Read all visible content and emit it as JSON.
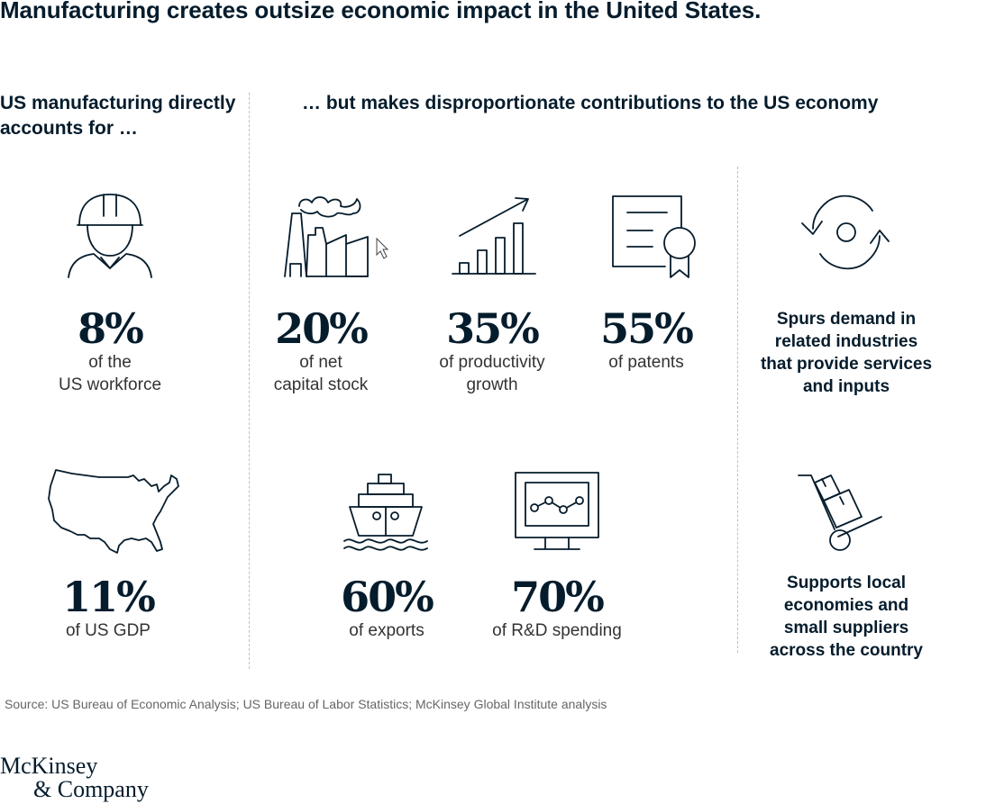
{
  "title": "Manufacturing creates outsize economic impact in the United States.",
  "left_heading": "US manufacturing directly accounts for …",
  "right_heading": "… but makes disproportionate contributions to the US economy",
  "direct": [
    {
      "icon": "worker-hardhat-icon",
      "value": "8%",
      "label_line1": "of the",
      "label_line2": "US workforce"
    },
    {
      "icon": "us-map-icon",
      "value": "11%",
      "label_line1": "of US GDP",
      "label_line2": ""
    }
  ],
  "contributions": [
    {
      "icon": "factory-icon",
      "value": "20%",
      "label_line1": "of net",
      "label_line2": "capital stock"
    },
    {
      "icon": "growth-chart-icon",
      "value": "35%",
      "label_line1": "of productivity",
      "label_line2": "growth"
    },
    {
      "icon": "certificate-icon",
      "value": "55%",
      "label_line1": "of patents",
      "label_line2": ""
    },
    {
      "icon": "cargo-ship-icon",
      "value": "60%",
      "label_line1": "of exports",
      "label_line2": ""
    },
    {
      "icon": "monitor-chart-icon",
      "value": "70%",
      "label_line1": "of R&D spending",
      "label_line2": ""
    }
  ],
  "effects": [
    {
      "icon": "refresh-cycle-icon",
      "text": [
        "Spurs demand in",
        "related industries",
        "that provide services",
        "and inputs"
      ]
    },
    {
      "icon": "hand-truck-icon",
      "text": [
        "Supports local",
        "economies and",
        "small suppliers",
        "across the country"
      ]
    }
  ],
  "source": "Source: US Bureau of Economic Analysis; US Bureau of Labor Statistics; McKinsey Global Institute analysis",
  "logo": {
    "line1": "McKinsey",
    "line2": "& Company"
  },
  "colors": {
    "text": "#051c2c",
    "divider": "#b9c0c8",
    "muted": "#666666"
  }
}
